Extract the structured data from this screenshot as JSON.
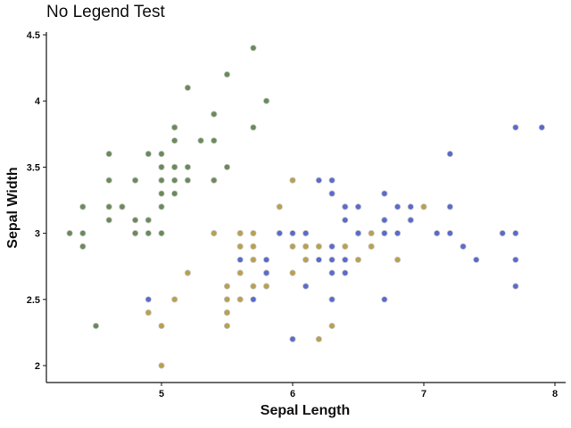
{
  "chart_data": {
    "type": "scatter",
    "title": "No Legend Test",
    "xlabel": "Sepal Length",
    "ylabel": "Sepal Width",
    "xlim": [
      4.2,
      8.1
    ],
    "ylim": [
      1.85,
      4.6
    ],
    "x_ticks": [
      "5",
      "6",
      "7",
      "8"
    ],
    "y_ticks": [
      "2",
      "2.5",
      "3",
      "3.5",
      "4",
      "4.5"
    ],
    "legend": "none",
    "grid": false,
    "series": [
      {
        "color": "#6a8a5a",
        "points": [
          [
            5.1,
            3.5
          ],
          [
            4.9,
            3.0
          ],
          [
            4.7,
            3.2
          ],
          [
            4.6,
            3.1
          ],
          [
            5.0,
            3.6
          ],
          [
            5.4,
            3.9
          ],
          [
            4.6,
            3.4
          ],
          [
            5.0,
            3.4
          ],
          [
            4.4,
            2.9
          ],
          [
            4.9,
            3.1
          ],
          [
            5.4,
            3.7
          ],
          [
            4.8,
            3.4
          ],
          [
            4.8,
            3.0
          ],
          [
            4.3,
            3.0
          ],
          [
            5.8,
            4.0
          ],
          [
            5.7,
            4.4
          ],
          [
            5.4,
            3.9
          ],
          [
            5.1,
            3.5
          ],
          [
            5.7,
            3.8
          ],
          [
            5.1,
            3.8
          ],
          [
            5.4,
            3.4
          ],
          [
            5.1,
            3.7
          ],
          [
            4.6,
            3.6
          ],
          [
            5.1,
            3.3
          ],
          [
            4.8,
            3.4
          ],
          [
            5.0,
            3.0
          ],
          [
            5.0,
            3.4
          ],
          [
            5.2,
            3.5
          ],
          [
            5.2,
            3.4
          ],
          [
            4.7,
            3.2
          ],
          [
            4.8,
            3.1
          ],
          [
            5.4,
            3.4
          ],
          [
            5.2,
            4.1
          ],
          [
            5.5,
            4.2
          ],
          [
            4.9,
            3.1
          ],
          [
            5.0,
            3.2
          ],
          [
            5.5,
            3.5
          ],
          [
            4.9,
            3.6
          ],
          [
            4.4,
            3.0
          ],
          [
            5.1,
            3.4
          ],
          [
            5.0,
            3.5
          ],
          [
            4.5,
            2.3
          ],
          [
            4.4,
            3.2
          ],
          [
            5.0,
            3.5
          ],
          [
            5.1,
            3.8
          ],
          [
            4.8,
            3.0
          ],
          [
            5.1,
            3.8
          ],
          [
            4.6,
            3.2
          ],
          [
            5.3,
            3.7
          ],
          [
            5.0,
            3.3
          ]
        ]
      },
      {
        "color": "#b8a050",
        "points": [
          [
            7.0,
            3.2
          ],
          [
            6.4,
            3.2
          ],
          [
            6.9,
            3.1
          ],
          [
            5.5,
            2.3
          ],
          [
            6.5,
            2.8
          ],
          [
            5.7,
            2.8
          ],
          [
            6.3,
            3.3
          ],
          [
            4.9,
            2.4
          ],
          [
            6.6,
            2.9
          ],
          [
            5.2,
            2.7
          ],
          [
            5.0,
            2.0
          ],
          [
            5.9,
            3.0
          ],
          [
            6.0,
            2.2
          ],
          [
            6.1,
            2.9
          ],
          [
            5.6,
            2.9
          ],
          [
            6.7,
            3.1
          ],
          [
            5.6,
            3.0
          ],
          [
            5.8,
            2.7
          ],
          [
            6.2,
            2.2
          ],
          [
            5.6,
            2.5
          ],
          [
            5.9,
            3.2
          ],
          [
            6.1,
            2.8
          ],
          [
            6.3,
            2.5
          ],
          [
            6.1,
            2.8
          ],
          [
            6.4,
            2.9
          ],
          [
            6.6,
            3.0
          ],
          [
            6.8,
            2.8
          ],
          [
            6.7,
            3.0
          ],
          [
            6.0,
            2.9
          ],
          [
            5.7,
            2.6
          ],
          [
            5.5,
            2.4
          ],
          [
            5.5,
            2.4
          ],
          [
            5.8,
            2.7
          ],
          [
            6.0,
            2.7
          ],
          [
            5.4,
            3.0
          ],
          [
            6.0,
            3.4
          ],
          [
            6.7,
            3.1
          ],
          [
            6.3,
            2.3
          ],
          [
            5.6,
            3.0
          ],
          [
            5.5,
            2.5
          ],
          [
            5.5,
            2.6
          ],
          [
            6.1,
            3.0
          ],
          [
            5.8,
            2.6
          ],
          [
            5.0,
            2.3
          ],
          [
            5.6,
            2.7
          ],
          [
            5.7,
            3.0
          ],
          [
            5.7,
            2.9
          ],
          [
            6.2,
            2.9
          ],
          [
            5.1,
            2.5
          ],
          [
            5.7,
            2.8
          ]
        ]
      },
      {
        "color": "#5a6acc",
        "points": [
          [
            6.3,
            3.3
          ],
          [
            5.8,
            2.7
          ],
          [
            7.1,
            3.0
          ],
          [
            6.3,
            2.9
          ],
          [
            6.5,
            3.0
          ],
          [
            7.6,
            3.0
          ],
          [
            4.9,
            2.5
          ],
          [
            7.3,
            2.9
          ],
          [
            6.7,
            2.5
          ],
          [
            7.2,
            3.6
          ],
          [
            6.5,
            3.2
          ],
          [
            6.4,
            2.7
          ],
          [
            6.8,
            3.0
          ],
          [
            5.7,
            2.5
          ],
          [
            5.8,
            2.8
          ],
          [
            6.4,
            3.2
          ],
          [
            6.5,
            3.0
          ],
          [
            7.7,
            3.8
          ],
          [
            7.7,
            2.6
          ],
          [
            6.0,
            2.2
          ],
          [
            6.9,
            3.2
          ],
          [
            5.6,
            2.8
          ],
          [
            7.7,
            2.8
          ],
          [
            6.3,
            2.7
          ],
          [
            6.7,
            3.3
          ],
          [
            7.2,
            3.2
          ],
          [
            6.2,
            2.8
          ],
          [
            6.1,
            3.0
          ],
          [
            6.4,
            2.8
          ],
          [
            7.2,
            3.0
          ],
          [
            7.4,
            2.8
          ],
          [
            7.9,
            3.8
          ],
          [
            6.4,
            2.8
          ],
          [
            6.3,
            2.8
          ],
          [
            6.1,
            2.6
          ],
          [
            7.7,
            3.0
          ],
          [
            6.3,
            3.4
          ],
          [
            6.4,
            3.1
          ],
          [
            6.0,
            3.0
          ],
          [
            6.9,
            3.1
          ],
          [
            6.7,
            3.1
          ],
          [
            6.9,
            3.1
          ],
          [
            5.8,
            2.7
          ],
          [
            6.8,
            3.2
          ],
          [
            6.7,
            3.3
          ],
          [
            6.7,
            3.0
          ],
          [
            6.3,
            2.5
          ],
          [
            6.5,
            3.0
          ],
          [
            6.2,
            3.4
          ],
          [
            5.9,
            3.0
          ]
        ]
      }
    ]
  }
}
